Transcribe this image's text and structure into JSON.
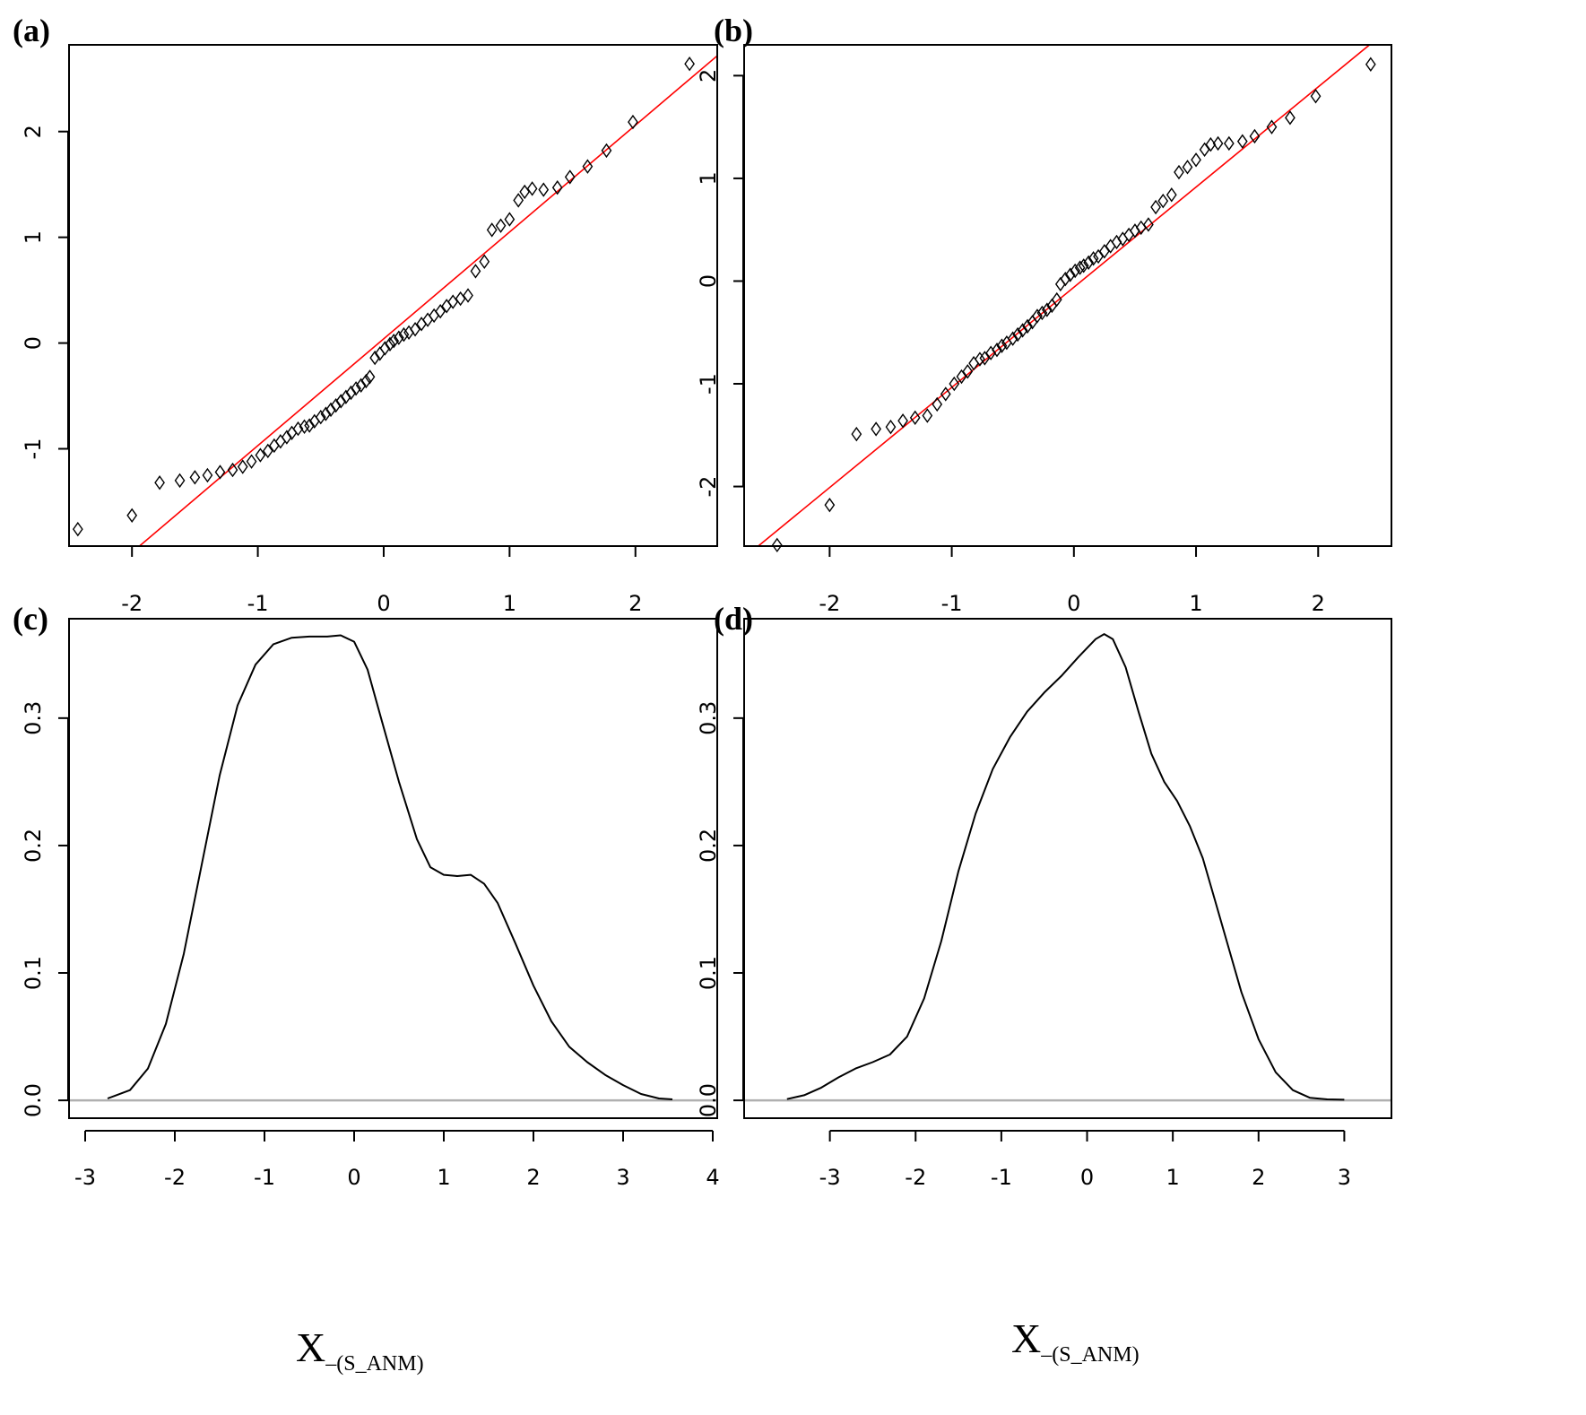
{
  "chart_data": [
    {
      "id": "a",
      "type": "scatter",
      "panel_label": "(a)",
      "title": "",
      "xlabel": "",
      "ylabel": "",
      "xlim": [
        -2.5,
        2.65
      ],
      "ylim": [
        -1.92,
        2.82
      ],
      "xticks": [
        -2,
        -1,
        0,
        1,
        2
      ],
      "yticks": [
        -1,
        0,
        1,
        2
      ],
      "x_axis_side": "bottom",
      "grid": false,
      "ref_line": {
        "color": "#ff0000",
        "intercept": 0.04,
        "slope": 1.01
      },
      "points": [
        [
          -2.43,
          -1.76
        ],
        [
          -2.0,
          -1.63
        ],
        [
          -1.78,
          -1.32
        ],
        [
          -1.62,
          -1.3
        ],
        [
          -1.5,
          -1.27
        ],
        [
          -1.4,
          -1.25
        ],
        [
          -1.3,
          -1.22
        ],
        [
          -1.2,
          -1.2
        ],
        [
          -1.12,
          -1.17
        ],
        [
          -1.05,
          -1.12
        ],
        [
          -0.98,
          -1.06
        ],
        [
          -0.92,
          -1.02
        ],
        [
          -0.87,
          -0.97
        ],
        [
          -0.82,
          -0.93
        ],
        [
          -0.77,
          -0.89
        ],
        [
          -0.73,
          -0.85
        ],
        [
          -0.68,
          -0.81
        ],
        [
          -0.63,
          -0.79
        ],
        [
          -0.59,
          -0.78
        ],
        [
          -0.55,
          -0.74
        ],
        [
          -0.5,
          -0.7
        ],
        [
          -0.46,
          -0.67
        ],
        [
          -0.42,
          -0.63
        ],
        [
          -0.38,
          -0.59
        ],
        [
          -0.34,
          -0.55
        ],
        [
          -0.3,
          -0.51
        ],
        [
          -0.26,
          -0.47
        ],
        [
          -0.22,
          -0.43
        ],
        [
          -0.18,
          -0.4
        ],
        [
          -0.14,
          -0.36
        ],
        [
          -0.11,
          -0.32
        ],
        [
          -0.07,
          -0.14
        ],
        [
          -0.03,
          -0.1
        ],
        [
          0.01,
          -0.05
        ],
        [
          0.05,
          -0.01
        ],
        [
          0.08,
          0.02
        ],
        [
          0.12,
          0.05
        ],
        [
          0.16,
          0.08
        ],
        [
          0.2,
          0.1
        ],
        [
          0.25,
          0.13
        ],
        [
          0.3,
          0.18
        ],
        [
          0.35,
          0.22
        ],
        [
          0.4,
          0.26
        ],
        [
          0.45,
          0.3
        ],
        [
          0.5,
          0.35
        ],
        [
          0.55,
          0.39
        ],
        [
          0.61,
          0.42
        ],
        [
          0.67,
          0.45
        ],
        [
          0.73,
          0.68
        ],
        [
          0.8,
          0.77
        ],
        [
          0.86,
          1.07
        ],
        [
          0.93,
          1.11
        ],
        [
          1.0,
          1.17
        ],
        [
          1.07,
          1.35
        ],
        [
          1.12,
          1.43
        ],
        [
          1.18,
          1.46
        ],
        [
          1.27,
          1.45
        ],
        [
          1.38,
          1.47
        ],
        [
          1.48,
          1.57
        ],
        [
          1.62,
          1.67
        ],
        [
          1.77,
          1.82
        ],
        [
          1.98,
          2.09
        ],
        [
          2.43,
          2.64
        ]
      ]
    },
    {
      "id": "b",
      "type": "scatter",
      "panel_label": "(b)",
      "title": "",
      "xlabel": "",
      "ylabel": "",
      "xlim": [
        -2.7,
        2.6
      ],
      "ylim": [
        -2.58,
        2.3
      ],
      "xticks": [
        -2,
        -1,
        0,
        1,
        2
      ],
      "yticks": [
        -2,
        -1,
        0,
        1,
        2
      ],
      "x_axis_side": "bottom",
      "grid": false,
      "ref_line": {
        "color": "#ff0000",
        "intercept": -0.06,
        "slope": 0.975
      },
      "points": [
        [
          -2.43,
          -2.57
        ],
        [
          -2.0,
          -2.18
        ],
        [
          -1.78,
          -1.49
        ],
        [
          -1.62,
          -1.44
        ],
        [
          -1.5,
          -1.42
        ],
        [
          -1.4,
          -1.36
        ],
        [
          -1.3,
          -1.33
        ],
        [
          -1.2,
          -1.31
        ],
        [
          -1.12,
          -1.2
        ],
        [
          -1.05,
          -1.1
        ],
        [
          -0.98,
          -1.0
        ],
        [
          -0.92,
          -0.93
        ],
        [
          -0.87,
          -0.88
        ],
        [
          -0.82,
          -0.8
        ],
        [
          -0.77,
          -0.76
        ],
        [
          -0.73,
          -0.75
        ],
        [
          -0.68,
          -0.7
        ],
        [
          -0.63,
          -0.67
        ],
        [
          -0.59,
          -0.63
        ],
        [
          -0.55,
          -0.6
        ],
        [
          -0.5,
          -0.56
        ],
        [
          -0.46,
          -0.52
        ],
        [
          -0.42,
          -0.48
        ],
        [
          -0.38,
          -0.44
        ],
        [
          -0.34,
          -0.4
        ],
        [
          -0.3,
          -0.34
        ],
        [
          -0.26,
          -0.31
        ],
        [
          -0.22,
          -0.28
        ],
        [
          -0.18,
          -0.24
        ],
        [
          -0.14,
          -0.18
        ],
        [
          -0.11,
          -0.03
        ],
        [
          -0.07,
          0.02
        ],
        [
          -0.03,
          0.06
        ],
        [
          0.01,
          0.1
        ],
        [
          0.05,
          0.13
        ],
        [
          0.08,
          0.15
        ],
        [
          0.12,
          0.18
        ],
        [
          0.16,
          0.22
        ],
        [
          0.2,
          0.24
        ],
        [
          0.25,
          0.29
        ],
        [
          0.3,
          0.34
        ],
        [
          0.35,
          0.38
        ],
        [
          0.4,
          0.41
        ],
        [
          0.45,
          0.45
        ],
        [
          0.5,
          0.49
        ],
        [
          0.55,
          0.52
        ],
        [
          0.61,
          0.55
        ],
        [
          0.67,
          0.72
        ],
        [
          0.73,
          0.78
        ],
        [
          0.8,
          0.84
        ],
        [
          0.86,
          1.06
        ],
        [
          0.93,
          1.11
        ],
        [
          1.0,
          1.18
        ],
        [
          1.07,
          1.28
        ],
        [
          1.12,
          1.33
        ],
        [
          1.18,
          1.34
        ],
        [
          1.27,
          1.34
        ],
        [
          1.38,
          1.36
        ],
        [
          1.48,
          1.41
        ],
        [
          1.62,
          1.5
        ],
        [
          1.77,
          1.59
        ],
        [
          1.98,
          1.8
        ],
        [
          2.43,
          2.11
        ]
      ]
    },
    {
      "id": "c",
      "type": "line",
      "panel_label": "(c)",
      "title": "",
      "xlabel": "X",
      "xlabel_sub": "–(S_ANM)",
      "ylabel": "",
      "xlim": [
        -3.18,
        4.05
      ],
      "ylim": [
        -0.014,
        0.378
      ],
      "xticks": [
        -3,
        -2,
        -1,
        0,
        1,
        2,
        3,
        4
      ],
      "yticks": [
        "0.0",
        "0.1",
        "0.2",
        "0.3"
      ],
      "top_axis_ticks": [
        -2,
        -1,
        0,
        1,
        2
      ],
      "top_axis_range": [
        -2.5,
        2.65
      ],
      "baseline_color": "#b0b0b0",
      "grid": false,
      "curve": [
        [
          -2.75,
          0.0015
        ],
        [
          -2.5,
          0.008
        ],
        [
          -2.3,
          0.025
        ],
        [
          -2.1,
          0.06
        ],
        [
          -1.9,
          0.115
        ],
        [
          -1.7,
          0.185
        ],
        [
          -1.5,
          0.255
        ],
        [
          -1.3,
          0.31
        ],
        [
          -1.1,
          0.342
        ],
        [
          -0.9,
          0.358
        ],
        [
          -0.7,
          0.363
        ],
        [
          -0.5,
          0.364
        ],
        [
          -0.3,
          0.364
        ],
        [
          -0.15,
          0.365
        ],
        [
          0.0,
          0.36
        ],
        [
          0.15,
          0.338
        ],
        [
          0.3,
          0.3
        ],
        [
          0.5,
          0.25
        ],
        [
          0.7,
          0.205
        ],
        [
          0.85,
          0.183
        ],
        [
          1.0,
          0.177
        ],
        [
          1.15,
          0.176
        ],
        [
          1.3,
          0.177
        ],
        [
          1.45,
          0.17
        ],
        [
          1.6,
          0.155
        ],
        [
          1.8,
          0.123
        ],
        [
          2.0,
          0.09
        ],
        [
          2.2,
          0.062
        ],
        [
          2.4,
          0.042
        ],
        [
          2.6,
          0.03
        ],
        [
          2.8,
          0.02
        ],
        [
          3.0,
          0.012
        ],
        [
          3.2,
          0.005
        ],
        [
          3.4,
          0.0015
        ],
        [
          3.55,
          0.0008
        ]
      ]
    },
    {
      "id": "d",
      "type": "line",
      "panel_label": "(d)",
      "title": "",
      "xlabel": "X",
      "xlabel_sub": "–(S_ANM)",
      "ylabel": "",
      "xlim": [
        -4.0,
        3.55
      ],
      "ylim": [
        -0.014,
        0.378
      ],
      "xticks": [
        -3,
        -2,
        -1,
        0,
        1,
        2,
        3
      ],
      "yticks": [
        "0.0",
        "0.1",
        "0.2",
        "0.3"
      ],
      "top_axis_ticks": [
        -2,
        -1,
        0,
        1,
        2
      ],
      "top_axis_range": [
        -2.7,
        2.6
      ],
      "baseline_color": "#b0b0b0",
      "grid": false,
      "curve": [
        [
          -3.5,
          0.001
        ],
        [
          -3.3,
          0.004
        ],
        [
          -3.1,
          0.01
        ],
        [
          -2.9,
          0.018
        ],
        [
          -2.7,
          0.025
        ],
        [
          -2.5,
          0.03
        ],
        [
          -2.3,
          0.036
        ],
        [
          -2.1,
          0.05
        ],
        [
          -1.9,
          0.08
        ],
        [
          -1.7,
          0.125
        ],
        [
          -1.5,
          0.18
        ],
        [
          -1.3,
          0.225
        ],
        [
          -1.1,
          0.26
        ],
        [
          -0.9,
          0.285
        ],
        [
          -0.7,
          0.305
        ],
        [
          -0.5,
          0.32
        ],
        [
          -0.3,
          0.333
        ],
        [
          -0.1,
          0.348
        ],
        [
          0.1,
          0.362
        ],
        [
          0.2,
          0.366
        ],
        [
          0.3,
          0.362
        ],
        [
          0.45,
          0.34
        ],
        [
          0.6,
          0.305
        ],
        [
          0.75,
          0.272
        ],
        [
          0.9,
          0.25
        ],
        [
          1.05,
          0.235
        ],
        [
          1.2,
          0.215
        ],
        [
          1.35,
          0.19
        ],
        [
          1.5,
          0.155
        ],
        [
          1.65,
          0.12
        ],
        [
          1.8,
          0.085
        ],
        [
          2.0,
          0.048
        ],
        [
          2.2,
          0.022
        ],
        [
          2.4,
          0.008
        ],
        [
          2.6,
          0.002
        ],
        [
          2.8,
          0.0008
        ],
        [
          3.0,
          0.0005
        ]
      ]
    }
  ]
}
